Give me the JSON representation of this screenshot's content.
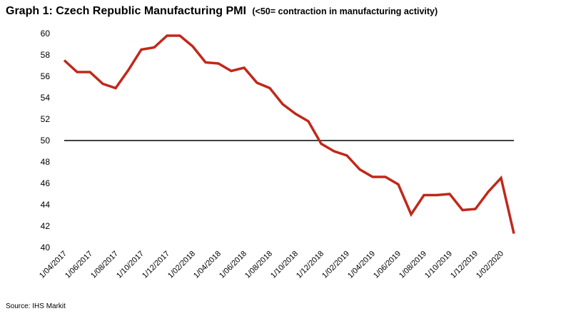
{
  "title": "Graph 1: Czech Republic Manufacturing PMI",
  "subtitle": "(<50= contraction in manufacturing activity)",
  "source": "Source: IHS Markit",
  "colors": {
    "series": "#c0281a",
    "reference": "#000000"
  },
  "chart_data": {
    "type": "line",
    "title": "Graph 1: Czech Republic Manufacturing PMI",
    "subtitle": "(<50= contraction in manufacturing activity)",
    "xlabel": "",
    "ylabel": "",
    "ylim": [
      40,
      60
    ],
    "y_ticks": [
      40,
      42,
      44,
      46,
      48,
      50,
      52,
      54,
      56,
      58,
      60
    ],
    "x_tick_labels": [
      "1/04/2017",
      "1/06/2017",
      "1/08/2017",
      "1/10/2017",
      "1/12/2017",
      "1/02/2018",
      "1/04/2018",
      "1/06/2018",
      "1/08/2018",
      "1/10/2018",
      "1/12/2018",
      "1/02/2019",
      "1/04/2019",
      "1/06/2019",
      "1/08/2019",
      "1/10/2019",
      "1/12/2019",
      "1/02/2020"
    ],
    "x": [
      "1/04/2017",
      "1/05/2017",
      "1/06/2017",
      "1/07/2017",
      "1/08/2017",
      "1/09/2017",
      "1/10/2017",
      "1/11/2017",
      "1/12/2017",
      "1/01/2018",
      "1/02/2018",
      "1/03/2018",
      "1/04/2018",
      "1/05/2018",
      "1/06/2018",
      "1/07/2018",
      "1/08/2018",
      "1/09/2018",
      "1/10/2018",
      "1/11/2018",
      "1/12/2018",
      "1/01/2019",
      "1/02/2019",
      "1/03/2019",
      "1/04/2019",
      "1/05/2019",
      "1/06/2019",
      "1/07/2019",
      "1/08/2019",
      "1/09/2019",
      "1/10/2019",
      "1/11/2019",
      "1/12/2019",
      "1/01/2020",
      "1/02/2020",
      "1/03/2020"
    ],
    "series": [
      {
        "values": [
          57.5,
          56.4,
          56.4,
          55.3,
          54.9,
          56.6,
          58.5,
          58.7,
          59.8,
          59.8,
          58.8,
          57.3,
          57.2,
          56.5,
          56.8,
          55.4,
          54.9,
          53.4,
          52.5,
          51.8,
          49.7,
          49.0,
          48.6,
          47.3,
          46.6,
          46.6,
          45.9,
          43.1,
          44.9,
          44.9,
          45.0,
          43.5,
          43.6,
          45.2,
          46.5,
          41.3
        ]
      }
    ],
    "reference_line": 50,
    "legend": "none",
    "grid": false
  }
}
